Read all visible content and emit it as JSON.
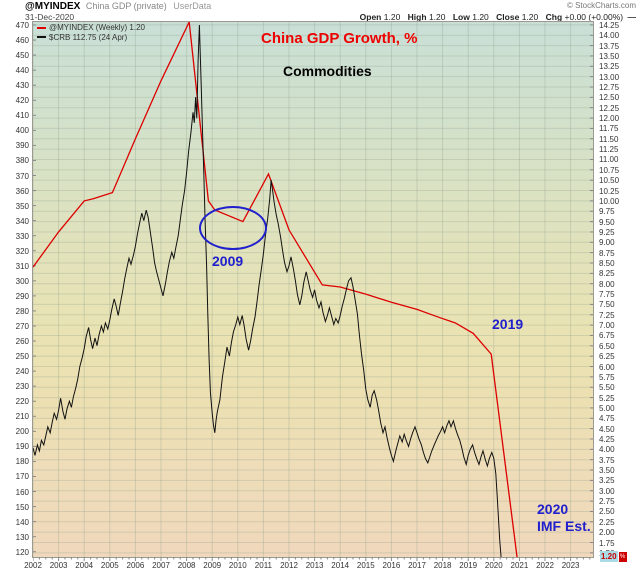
{
  "header": {
    "symbol": "@MYINDEX",
    "description": "China GDP (private)",
    "source_tag": "UserData",
    "date": "31-Dec-2020",
    "brand": "© StockCharts.com",
    "ohlc": {
      "open_label": "Open",
      "open": "1.20",
      "high_label": "High",
      "high": "1.20",
      "low_label": "Low",
      "low": "1.20",
      "close_label": "Close",
      "close": "1.20",
      "chg_label": "Chg",
      "chg": "+0.00 (+0.00%)",
      "dash": "—"
    }
  },
  "legend": [
    {
      "label": "@MYINDEX (Weekly) 1.20",
      "swatch_color": "#dd0000"
    },
    {
      "label": "$CRB 112.75 (24 Apr)",
      "swatch_color": "#111111"
    }
  ],
  "annotations": {
    "gdp_title": {
      "text": "China GDP Growth, %",
      "color": "#ee0000"
    },
    "commodities_title": {
      "text": "Commodities",
      "color": "#000000"
    },
    "label_2009": {
      "text": "2009",
      "color": "#2020cc"
    },
    "label_2019": {
      "text": "2019",
      "color": "#2020cc"
    },
    "label_2020": {
      "text": "2020",
      "color": "#2020cc"
    },
    "label_imf": {
      "text": "IMF Est.",
      "color": "#2020cc"
    },
    "ellipse_color": "#2020cc"
  },
  "last_value_flag": {
    "text": "1.20",
    "text_color": "#cc0000",
    "bg_color": "#a9dbe6",
    "box_color": "#cc0000",
    "box_glyph": "%"
  },
  "axes": {
    "x_years": [
      "2002",
      "2003",
      "2004",
      "2005",
      "2006",
      "2007",
      "2008",
      "2009",
      "2010",
      "2011",
      "2012",
      "2013",
      "2014",
      "2015",
      "2016",
      "2017",
      "2018",
      "2019",
      "2020",
      "2021",
      "2022",
      "2023"
    ],
    "left_ticks": [
      "470",
      "460",
      "450",
      "440",
      "430",
      "420",
      "410",
      "400",
      "390",
      "380",
      "370",
      "360",
      "350",
      "340",
      "330",
      "320",
      "310",
      "300",
      "290",
      "280",
      "270",
      "260",
      "250",
      "240",
      "230",
      "220",
      "210",
      "200",
      "190",
      "180",
      "170",
      "160",
      "150",
      "140",
      "130",
      "120"
    ],
    "right_ticks": [
      "14.25",
      "14.00",
      "13.75",
      "13.50",
      "13.25",
      "13.00",
      "12.75",
      "12.50",
      "12.25",
      "12.00",
      "11.75",
      "11.50",
      "11.25",
      "11.00",
      "10.75",
      "10.50",
      "10.25",
      "10.00",
      "9.75",
      "9.50",
      "9.25",
      "9.00",
      "8.75",
      "8.50",
      "8.25",
      "8.00",
      "7.75",
      "7.50",
      "7.25",
      "7.00",
      "6.75",
      "6.50",
      "6.25",
      "6.00",
      "5.75",
      "5.50",
      "5.25",
      "5.00",
      "4.75",
      "4.50",
      "4.25",
      "4.00",
      "3.75",
      "3.50",
      "3.25",
      "3.00",
      "2.75",
      "2.50",
      "2.25",
      "2.00",
      "1.75",
      "1.50"
    ]
  },
  "chart_data": {
    "type": "line",
    "title": "China GDP Growth, % vs Commodities",
    "x_axis": {
      "range": [
        2002,
        2023.875
      ],
      "tick_interval_years": 1,
      "grid": true
    },
    "right_axis": {
      "label": "China GDP Growth %",
      "range": [
        1.4,
        14.32
      ],
      "tick_step": 0.25,
      "grid": true
    },
    "left_axis": {
      "label": "Commodities ($CRB)",
      "range": [
        116.5,
        472.0
      ],
      "tick_step": 10,
      "grid": false
    },
    "legend_position": "top-left",
    "series": [
      {
        "name": "@MYINDEX (Weekly) — China GDP Growth %",
        "axis": "right",
        "color": "#dd0000",
        "width": 1.3,
        "last_value": 1.2,
        "points": [
          [
            2002.0,
            8.4
          ],
          [
            2003.0,
            9.25
          ],
          [
            2004.0,
            10.0
          ],
          [
            2004.35,
            10.05
          ],
          [
            2005.1,
            10.2
          ],
          [
            2006.0,
            11.5
          ],
          [
            2007.0,
            12.9
          ],
          [
            2008.1,
            14.32
          ],
          [
            2008.85,
            10.0
          ],
          [
            2009.1,
            9.78
          ],
          [
            2010.2,
            9.5
          ],
          [
            2011.2,
            10.65
          ],
          [
            2012.0,
            9.3
          ],
          [
            2013.3,
            7.97
          ],
          [
            2014.0,
            7.92
          ],
          [
            2015.0,
            7.75
          ],
          [
            2016.0,
            7.55
          ],
          [
            2017.0,
            7.38
          ],
          [
            2017.8,
            7.2
          ],
          [
            2018.5,
            7.05
          ],
          [
            2019.2,
            6.8
          ],
          [
            2019.9,
            6.3
          ],
          [
            2020.95,
            1.2
          ]
        ]
      },
      {
        "name": "$CRB — Commodities",
        "axis": "left",
        "color": "#111111",
        "width": 1,
        "last_value": 112.75,
        "points": [
          [
            2002.0,
            189
          ],
          [
            2002.08,
            184
          ],
          [
            2002.17,
            191
          ],
          [
            2002.25,
            187
          ],
          [
            2002.33,
            194
          ],
          [
            2002.42,
            191
          ],
          [
            2002.5,
            197
          ],
          [
            2002.58,
            203
          ],
          [
            2002.67,
            199
          ],
          [
            2002.75,
            206
          ],
          [
            2002.83,
            212
          ],
          [
            2002.92,
            208
          ],
          [
            2003.0,
            214
          ],
          [
            2003.08,
            222
          ],
          [
            2003.17,
            213
          ],
          [
            2003.25,
            208
          ],
          [
            2003.33,
            215
          ],
          [
            2003.42,
            220
          ],
          [
            2003.5,
            216
          ],
          [
            2003.58,
            223
          ],
          [
            2003.67,
            229
          ],
          [
            2003.75,
            235
          ],
          [
            2003.83,
            243
          ],
          [
            2003.92,
            249
          ],
          [
            2004.0,
            255
          ],
          [
            2004.08,
            263
          ],
          [
            2004.17,
            269
          ],
          [
            2004.25,
            261
          ],
          [
            2004.33,
            255
          ],
          [
            2004.42,
            262
          ],
          [
            2004.5,
            257
          ],
          [
            2004.58,
            264
          ],
          [
            2004.67,
            270
          ],
          [
            2004.75,
            266
          ],
          [
            2004.83,
            272
          ],
          [
            2004.92,
            268
          ],
          [
            2005.0,
            274
          ],
          [
            2005.08,
            281
          ],
          [
            2005.17,
            288
          ],
          [
            2005.25,
            283
          ],
          [
            2005.33,
            277
          ],
          [
            2005.42,
            286
          ],
          [
            2005.5,
            293
          ],
          [
            2005.58,
            301
          ],
          [
            2005.67,
            309
          ],
          [
            2005.75,
            315
          ],
          [
            2005.83,
            311
          ],
          [
            2005.92,
            317
          ],
          [
            2006.0,
            323
          ],
          [
            2006.08,
            331
          ],
          [
            2006.17,
            339
          ],
          [
            2006.25,
            345
          ],
          [
            2006.33,
            340
          ],
          [
            2006.42,
            347
          ],
          [
            2006.5,
            342
          ],
          [
            2006.58,
            333
          ],
          [
            2006.67,
            322
          ],
          [
            2006.75,
            312
          ],
          [
            2006.83,
            306
          ],
          [
            2006.92,
            300
          ],
          [
            2007.0,
            295
          ],
          [
            2007.08,
            290
          ],
          [
            2007.17,
            298
          ],
          [
            2007.25,
            306
          ],
          [
            2007.33,
            313
          ],
          [
            2007.42,
            319
          ],
          [
            2007.5,
            315
          ],
          [
            2007.58,
            322
          ],
          [
            2007.67,
            330
          ],
          [
            2007.75,
            340
          ],
          [
            2007.83,
            350
          ],
          [
            2007.92,
            360
          ],
          [
            2008.0,
            372
          ],
          [
            2008.08,
            386
          ],
          [
            2008.17,
            399
          ],
          [
            2008.25,
            412
          ],
          [
            2008.3,
            405
          ],
          [
            2008.35,
            422
          ],
          [
            2008.4,
            408
          ],
          [
            2008.45,
            446
          ],
          [
            2008.5,
            470
          ],
          [
            2008.53,
            452
          ],
          [
            2008.57,
            430
          ],
          [
            2008.62,
            400
          ],
          [
            2008.67,
            372
          ],
          [
            2008.72,
            342
          ],
          [
            2008.78,
            310
          ],
          [
            2008.83,
            278
          ],
          [
            2008.88,
            248
          ],
          [
            2008.93,
            226
          ],
          [
            2009.0,
            212
          ],
          [
            2009.05,
            204
          ],
          [
            2009.1,
            199
          ],
          [
            2009.15,
            207
          ],
          [
            2009.2,
            213
          ],
          [
            2009.3,
            221
          ],
          [
            2009.4,
            236
          ],
          [
            2009.5,
            247
          ],
          [
            2009.58,
            256
          ],
          [
            2009.67,
            250
          ],
          [
            2009.75,
            259
          ],
          [
            2009.83,
            266
          ],
          [
            2009.92,
            271
          ],
          [
            2010.0,
            276
          ],
          [
            2010.08,
            271
          ],
          [
            2010.17,
            277
          ],
          [
            2010.25,
            270
          ],
          [
            2010.33,
            261
          ],
          [
            2010.42,
            254
          ],
          [
            2010.5,
            260
          ],
          [
            2010.58,
            268
          ],
          [
            2010.67,
            276
          ],
          [
            2010.75,
            286
          ],
          [
            2010.83,
            297
          ],
          [
            2010.92,
            308
          ],
          [
            2011.0,
            318
          ],
          [
            2011.08,
            330
          ],
          [
            2011.17,
            342
          ],
          [
            2011.25,
            355
          ],
          [
            2011.3,
            367
          ],
          [
            2011.35,
            361
          ],
          [
            2011.42,
            352
          ],
          [
            2011.5,
            344
          ],
          [
            2011.58,
            338
          ],
          [
            2011.67,
            329
          ],
          [
            2011.75,
            320
          ],
          [
            2011.83,
            312
          ],
          [
            2011.92,
            306
          ],
          [
            2012.0,
            310
          ],
          [
            2012.08,
            316
          ],
          [
            2012.17,
            308
          ],
          [
            2012.25,
            300
          ],
          [
            2012.33,
            291
          ],
          [
            2012.42,
            284
          ],
          [
            2012.5,
            290
          ],
          [
            2012.58,
            299
          ],
          [
            2012.67,
            306
          ],
          [
            2012.75,
            300
          ],
          [
            2012.83,
            294
          ],
          [
            2012.92,
            289
          ],
          [
            2013.0,
            294
          ],
          [
            2013.08,
            287
          ],
          [
            2013.17,
            282
          ],
          [
            2013.25,
            286
          ],
          [
            2013.33,
            279
          ],
          [
            2013.42,
            273
          ],
          [
            2013.5,
            277
          ],
          [
            2013.58,
            282
          ],
          [
            2013.67,
            276
          ],
          [
            2013.75,
            271
          ],
          [
            2013.83,
            275
          ],
          [
            2013.92,
            272
          ],
          [
            2014.0,
            277
          ],
          [
            2014.08,
            283
          ],
          [
            2014.17,
            289
          ],
          [
            2014.25,
            295
          ],
          [
            2014.33,
            300
          ],
          [
            2014.42,
            302
          ],
          [
            2014.5,
            296
          ],
          [
            2014.58,
            288
          ],
          [
            2014.67,
            278
          ],
          [
            2014.75,
            264
          ],
          [
            2014.83,
            252
          ],
          [
            2014.92,
            240
          ],
          [
            2015.0,
            228
          ],
          [
            2015.08,
            221
          ],
          [
            2015.17,
            216
          ],
          [
            2015.25,
            224
          ],
          [
            2015.33,
            227
          ],
          [
            2015.42,
            221
          ],
          [
            2015.5,
            214
          ],
          [
            2015.58,
            206
          ],
          [
            2015.67,
            199
          ],
          [
            2015.75,
            203
          ],
          [
            2015.83,
            196
          ],
          [
            2015.92,
            189
          ],
          [
            2016.0,
            184
          ],
          [
            2016.08,
            180
          ],
          [
            2016.17,
            187
          ],
          [
            2016.25,
            192
          ],
          [
            2016.33,
            197
          ],
          [
            2016.42,
            193
          ],
          [
            2016.5,
            198
          ],
          [
            2016.58,
            194
          ],
          [
            2016.67,
            190
          ],
          [
            2016.75,
            195
          ],
          [
            2016.83,
            199
          ],
          [
            2016.92,
            203
          ],
          [
            2017.0,
            199
          ],
          [
            2017.08,
            195
          ],
          [
            2017.17,
            191
          ],
          [
            2017.25,
            186
          ],
          [
            2017.33,
            182
          ],
          [
            2017.42,
            179
          ],
          [
            2017.5,
            183
          ],
          [
            2017.58,
            187
          ],
          [
            2017.67,
            191
          ],
          [
            2017.75,
            194
          ],
          [
            2017.83,
            197
          ],
          [
            2017.92,
            200
          ],
          [
            2018.0,
            203
          ],
          [
            2018.08,
            199
          ],
          [
            2018.17,
            204
          ],
          [
            2018.25,
            207
          ],
          [
            2018.33,
            203
          ],
          [
            2018.42,
            207
          ],
          [
            2018.5,
            202
          ],
          [
            2018.58,
            198
          ],
          [
            2018.67,
            194
          ],
          [
            2018.75,
            189
          ],
          [
            2018.83,
            183
          ],
          [
            2018.92,
            178
          ],
          [
            2019.0,
            184
          ],
          [
            2019.08,
            188
          ],
          [
            2019.17,
            191
          ],
          [
            2019.25,
            186
          ],
          [
            2019.33,
            182
          ],
          [
            2019.42,
            178
          ],
          [
            2019.5,
            183
          ],
          [
            2019.58,
            187
          ],
          [
            2019.67,
            181
          ],
          [
            2019.75,
            177
          ],
          [
            2019.83,
            182
          ],
          [
            2019.92,
            186
          ],
          [
            2020.0,
            182
          ],
          [
            2020.08,
            172
          ],
          [
            2020.13,
            158
          ],
          [
            2020.18,
            143
          ],
          [
            2020.23,
            128
          ],
          [
            2020.28,
            117
          ],
          [
            2020.31,
            112.75
          ]
        ]
      }
    ]
  }
}
